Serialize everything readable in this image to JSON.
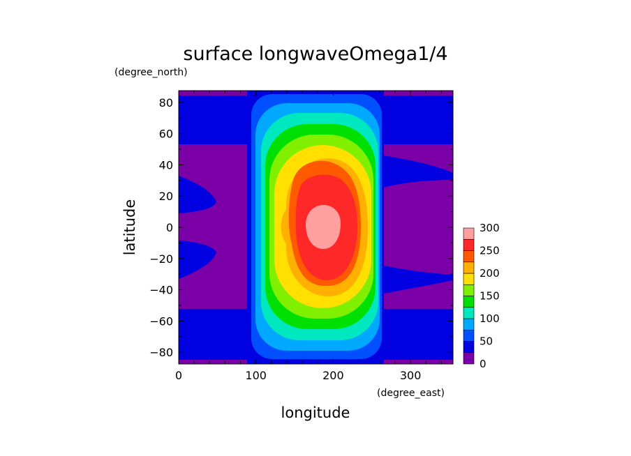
{
  "chart_data": {
    "type": "heatmap",
    "title": "surface longwaveOmega1/4",
    "xlabel": "longitude",
    "ylabel": "latitude",
    "x_units": "(degree_east)",
    "y_units": "(degree_north)",
    "xlim": [
      0,
      355
    ],
    "ylim": [
      -87.5,
      87.5
    ],
    "x_ticks": [
      "0",
      "100",
      "200",
      "300"
    ],
    "y_ticks": [
      "80",
      "60",
      "40",
      "20",
      "0",
      "−20",
      "−40",
      "−60",
      "−80"
    ],
    "grid": false,
    "colorbar": {
      "ticks": [
        "0",
        "50",
        "100",
        "150",
        "200",
        "250",
        "300"
      ],
      "levels": [
        0,
        25,
        50,
        75,
        100,
        125,
        150,
        175,
        200,
        225,
        250,
        275,
        300
      ],
      "colors": [
        "#7b00a8",
        "#0000e0",
        "#0050ff",
        "#00a8ff",
        "#00e8c0",
        "#00e000",
        "#80f000",
        "#ffe000",
        "#ffb000",
        "#ff5a00",
        "#ff2828",
        "#ffa0a0"
      ]
    },
    "field_description": {
      "day_side_peak": {
        "lon": 192,
        "lat": 0,
        "value": 300
      },
      "day_side_lon_range": [
        90,
        265
      ],
      "night_side_value_range": [
        0,
        50
      ]
    }
  }
}
